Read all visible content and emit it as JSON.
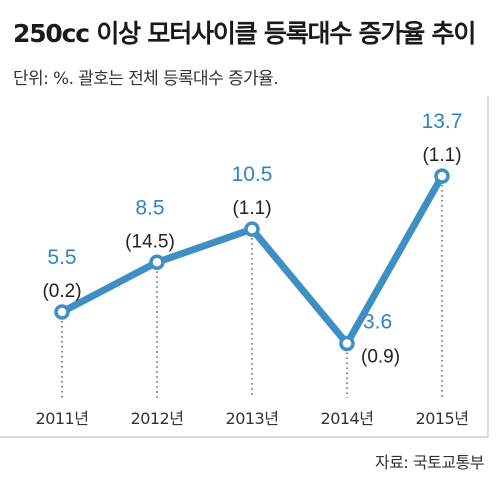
{
  "title": "250cc 이상 모터사이클 등록대수 증가율 추이",
  "subtitle": "단위: %. 괄호는 전체 등록대수 증가율.",
  "source": "자료: 국토교통부",
  "colors": {
    "line": "#3e8fc4",
    "value_label": "#2f86c0",
    "paren_label": "#222222",
    "axis_text": "#333333",
    "frame": "#cfcfcf",
    "guide": "#444444"
  },
  "chart_data": {
    "type": "line",
    "title": "250cc 이상 모터사이클 등록대수 증가율 추이",
    "xlabel": "",
    "ylabel": "",
    "categories": [
      "2011년",
      "2012년",
      "2013년",
      "2014년",
      "2015년"
    ],
    "series": [
      {
        "values": [
          5.5,
          8.5,
          10.5,
          3.6,
          13.7
        ]
      }
    ],
    "value_labels": [
      "5.5",
      "8.5",
      "10.5",
      "3.6",
      "13.7"
    ],
    "annotations": [
      "(0.2)",
      "(14.5)",
      "(1.1)",
      "(0.9)",
      "(1.1)"
    ],
    "ylim": [
      2,
      16
    ],
    "grid": false
  }
}
